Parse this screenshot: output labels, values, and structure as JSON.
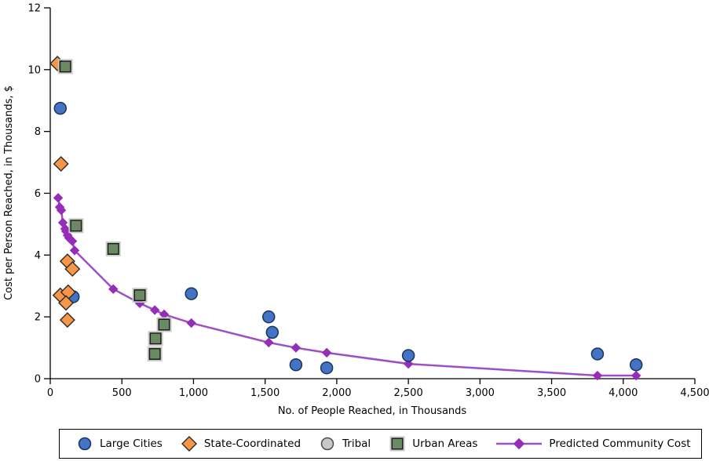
{
  "figure": {
    "background": "#FFFFFF"
  },
  "chart_data": {
    "type": "scatter",
    "title": "",
    "xlabel": "No. of People Reached, in Thousands",
    "ylabel": "Cost per Person Reached, in Thousands, $",
    "xlim": [
      0,
      4500
    ],
    "ylim": [
      0,
      12
    ],
    "grid": false,
    "legend_position": "bottom",
    "x_ticks": [
      {
        "value": 0,
        "label": "0"
      },
      {
        "value": 500,
        "label": "500"
      },
      {
        "value": 1000,
        "label": "1,000"
      },
      {
        "value": 1500,
        "label": "1,500"
      },
      {
        "value": 2000,
        "label": "2,000"
      },
      {
        "value": 2500,
        "label": "2,500"
      },
      {
        "value": 3000,
        "label": "3,000"
      },
      {
        "value": 3500,
        "label": "3,500"
      },
      {
        "value": 4000,
        "label": "4,000"
      },
      {
        "value": 4500,
        "label": "4,500"
      }
    ],
    "y_ticks": [
      {
        "value": 0,
        "label": "0"
      },
      {
        "value": 2,
        "label": "2"
      },
      {
        "value": 4,
        "label": "4"
      },
      {
        "value": 6,
        "label": "6"
      },
      {
        "value": 8,
        "label": "8"
      },
      {
        "value": 10,
        "label": "10"
      },
      {
        "value": 12,
        "label": "12"
      }
    ],
    "series": [
      {
        "name": "Large Cities",
        "slug": "large-cities",
        "kind": "scatter",
        "marker": "circle",
        "fill": "#4472C4",
        "stroke": "#17365D",
        "points": [
          [
            70,
            8.75
          ],
          [
            160,
            2.65
          ],
          [
            985,
            2.75
          ],
          [
            1525,
            2.0
          ],
          [
            1550,
            1.5
          ],
          [
            1715,
            0.45
          ],
          [
            1930,
            0.35
          ],
          [
            2500,
            0.75
          ],
          [
            3820,
            0.8
          ],
          [
            4090,
            0.45
          ]
        ]
      },
      {
        "name": "State-Coordinated",
        "slug": "state-coordinated",
        "kind": "scatter",
        "marker": "diamond",
        "fill": "#F79646",
        "stroke": "#2B2B2B",
        "points": [
          [
            50,
            10.2
          ],
          [
            75,
            6.95
          ],
          [
            120,
            3.8
          ],
          [
            155,
            3.55
          ],
          [
            70,
            2.7
          ],
          [
            125,
            2.8
          ],
          [
            110,
            2.45
          ],
          [
            120,
            1.9
          ]
        ]
      },
      {
        "name": "Tribal",
        "slug": "tribal",
        "kind": "scatter",
        "marker": "circle",
        "fill": "#C8C8C8",
        "stroke": "#4D4D4D",
        "points": []
      },
      {
        "name": "Urban Areas",
        "slug": "urban-areas",
        "kind": "scatter",
        "marker": "square",
        "fill": "#6A8A64",
        "stroke": "#1A1A1A",
        "halo": "#C9C9C9",
        "points": [
          [
            105,
            10.1
          ],
          [
            180,
            4.95
          ],
          [
            440,
            4.2
          ],
          [
            625,
            2.7
          ],
          [
            795,
            1.75
          ],
          [
            735,
            1.3
          ],
          [
            730,
            0.8
          ]
        ]
      },
      {
        "name": "Predicted Community Cost",
        "slug": "predicted-community-cost",
        "kind": "line",
        "marker": "diamond",
        "fill": "#952DB8",
        "stroke": "#A04EC3",
        "points": [
          [
            55,
            5.85
          ],
          [
            66,
            5.55
          ],
          [
            77,
            5.45
          ],
          [
            88,
            5.05
          ],
          [
            104,
            4.85
          ],
          [
            110,
            4.77
          ],
          [
            121,
            4.64
          ],
          [
            132,
            4.55
          ],
          [
            154,
            4.45
          ],
          [
            170,
            4.15
          ],
          [
            440,
            2.9
          ],
          [
            625,
            2.44
          ],
          [
            730,
            2.22
          ],
          [
            795,
            2.08
          ],
          [
            985,
            1.8
          ],
          [
            1525,
            1.17
          ],
          [
            1715,
            1.0
          ],
          [
            1930,
            0.84
          ],
          [
            2500,
            0.48
          ],
          [
            3820,
            0.1
          ],
          [
            4090,
            0.1
          ]
        ]
      }
    ]
  }
}
